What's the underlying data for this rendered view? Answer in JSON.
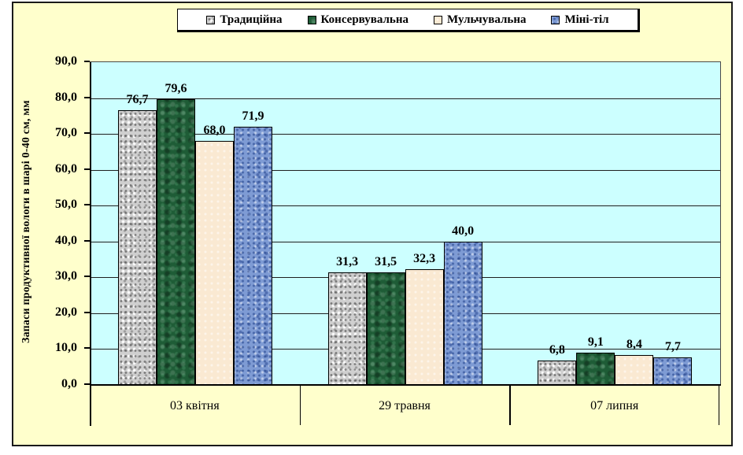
{
  "chart_data": {
    "type": "bar",
    "title": "",
    "categories": [
      "03 квітня",
      "29 травня",
      "07 липня"
    ],
    "series": [
      {
        "name": "Традиційна",
        "values": [
          76.7,
          31.3,
          6.8
        ],
        "labels": [
          "76,7",
          "31,3",
          "6,8"
        ],
        "color": "#CFCFCF",
        "texture": "tex-gray"
      },
      {
        "name": "Консервувальна",
        "values": [
          79.6,
          31.5,
          9.1
        ],
        "labels": [
          "79,6",
          "31,5",
          "9,1"
        ],
        "color": "#1E5C36",
        "texture": "tex-green"
      },
      {
        "name": "Мульчувальна",
        "values": [
          68.0,
          32.3,
          8.4
        ],
        "labels": [
          "68,0",
          "32,3",
          "8,4"
        ],
        "color": "#FAE9D2",
        "texture": "tex-cream"
      },
      {
        "name": "Міні-тіл",
        "values": [
          71.9,
          40.0,
          7.7
        ],
        "labels": [
          "71,9",
          "40,0",
          "7,7"
        ],
        "color": "#7E9BD4",
        "texture": "tex-blue"
      }
    ],
    "xlabel": "",
    "ylabel": "Запаси продуктивної вологи в шарі 0-40 см, мм",
    "ylim": [
      0,
      90
    ],
    "y_tick_step": 10,
    "y_tick_labels": [
      "0,0",
      "10,0",
      "20,0",
      "30,0",
      "40,0",
      "50,0",
      "60,0",
      "70,0",
      "80,0",
      "90,0"
    ],
    "grid": true,
    "legend_position": "top",
    "colors": {
      "chart_background": "#FFFFCC",
      "plot_background": "#CCFFFF",
      "gridline": "#1F1F1F",
      "axis": "#000000",
      "bar_border": "#000000",
      "frame_border": "#1A1A1A",
      "legend_background": "#FFFFFF"
    }
  }
}
